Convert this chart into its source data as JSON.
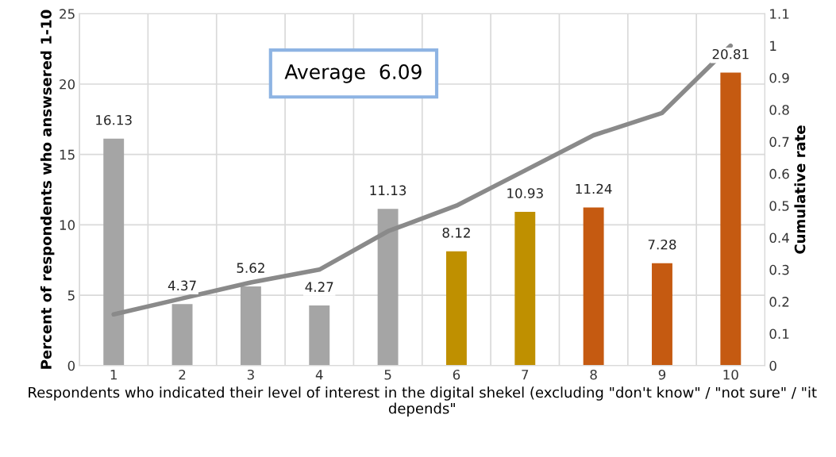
{
  "chart_data": {
    "type": "bar",
    "xlabel": "Respondents who indicated their level of interest in the digital shekel (excluding \"don't know\" / \"not sure\" / \"it depends\"",
    "ylabel": "Percent of respondents who answsered 1-10",
    "y2label": "Cumulative rate",
    "categories": [
      "1",
      "2",
      "3",
      "4",
      "5",
      "6",
      "7",
      "8",
      "9",
      "10"
    ],
    "series": [
      {
        "colors": [
          "#a5a5a5",
          "#a5a5a5",
          "#a5a5a5",
          "#a5a5a5",
          "#a5a5a5",
          "#bf9000",
          "#bf9000",
          "#c55a11",
          "#c55a11",
          "#c55a11"
        ],
        "values": [
          16.13,
          4.37,
          5.62,
          4.27,
          11.13,
          8.12,
          10.93,
          11.24,
          7.28,
          20.81
        ],
        "data_labels": true
      },
      {
        "type": "line",
        "axis": "y2",
        "color": "#8a8a8a",
        "values": [
          0.16,
          0.21,
          0.26,
          0.3,
          0.42,
          0.5,
          0.61,
          0.72,
          0.79,
          1.0
        ]
      }
    ],
    "ylim": [
      0,
      25
    ],
    "yticks": [
      0,
      5,
      10,
      15,
      20,
      25
    ],
    "y2lim": [
      0,
      1.1
    ],
    "y2ticks": [
      0,
      0.1,
      0.2,
      0.3,
      0.4,
      0.5,
      0.6,
      0.7,
      0.8,
      0.9,
      1,
      1.1
    ],
    "grid": true,
    "annotations": [
      "Average  6.09"
    ]
  }
}
